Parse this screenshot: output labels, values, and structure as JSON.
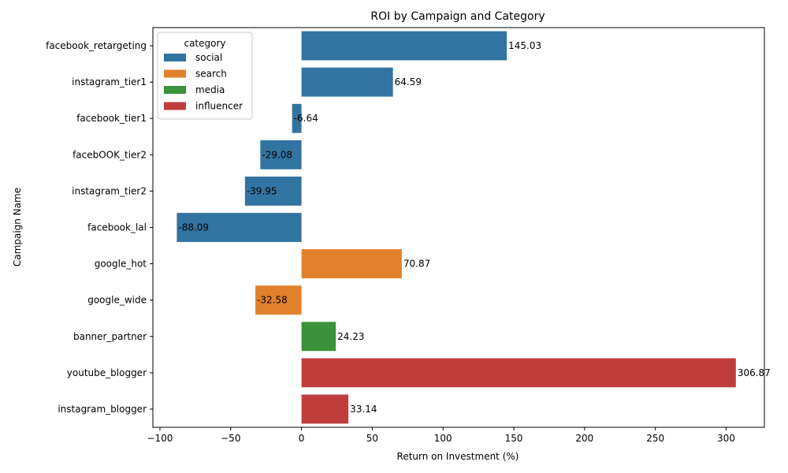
{
  "chart_data": {
    "type": "bar",
    "orientation": "horizontal",
    "title": "ROI by Campaign and Category",
    "xlabel": "Return on Investment (%)",
    "ylabel": "Campaign Name",
    "xlim": [
      -105,
      327
    ],
    "xticks": [
      -100,
      -50,
      0,
      50,
      100,
      150,
      200,
      250,
      300
    ],
    "grid": false,
    "legend": {
      "title": "category",
      "placement": "top-left",
      "entries": [
        {
          "name": "social",
          "color": "#3274a1"
        },
        {
          "name": "search",
          "color": "#e1812c"
        },
        {
          "name": "media",
          "color": "#3a923a"
        },
        {
          "name": "influencer",
          "color": "#c03d3e"
        }
      ]
    },
    "bars": [
      {
        "campaign": "facebook_retargeting",
        "category": "social",
        "value": 145.03,
        "label": "145.03"
      },
      {
        "campaign": "instagram_tier1",
        "category": "social",
        "value": 64.59,
        "label": "64.59"
      },
      {
        "campaign": "facebook_tier1",
        "category": "social",
        "value": -6.64,
        "label": "-6.64"
      },
      {
        "campaign": "facebOOK_tier2",
        "category": "social",
        "value": -29.08,
        "label": "-29.08"
      },
      {
        "campaign": "instagram_tier2",
        "category": "social",
        "value": -39.95,
        "label": "-39.95"
      },
      {
        "campaign": "facebook_lal",
        "category": "social",
        "value": -88.09,
        "label": "-88.09"
      },
      {
        "campaign": "google_hot",
        "category": "search",
        "value": 70.87,
        "label": "70.87"
      },
      {
        "campaign": "google_wide",
        "category": "search",
        "value": -32.58,
        "label": "-32.58"
      },
      {
        "campaign": "banner_partner",
        "category": "media",
        "value": 24.23,
        "label": "24.23"
      },
      {
        "campaign": "youtube_blogger",
        "category": "influencer",
        "value": 306.87,
        "label": "306.87"
      },
      {
        "campaign": "instagram_blogger",
        "category": "influencer",
        "value": 33.14,
        "label": "33.14"
      }
    ]
  }
}
